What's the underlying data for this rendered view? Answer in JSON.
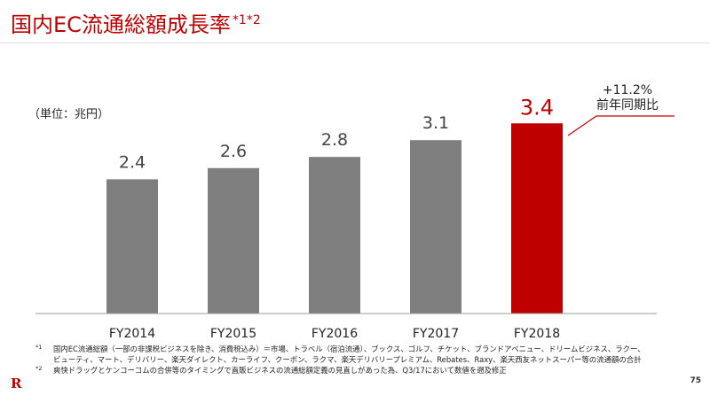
{
  "page": {
    "title": "国内EC流通総額成長率",
    "title_sup": "*1*2",
    "unit_label": "（単位：兆円）",
    "page_number": "75",
    "logo_letter": "R"
  },
  "callout": {
    "line1": "+11.2%",
    "line2": "前年同期比"
  },
  "colors": {
    "accent": "#bf0000",
    "bar_default": "#7f7f7f",
    "bar_highlight": "#bf0000"
  },
  "chart_data": {
    "type": "bar",
    "categories": [
      "FY2014",
      "FY2015",
      "FY2016",
      "FY2017",
      "FY2018"
    ],
    "values": [
      2.4,
      2.6,
      2.8,
      3.1,
      3.4
    ],
    "value_labels": [
      "2.4",
      "2.6",
      "2.8",
      "3.1",
      "3.4"
    ],
    "highlight_index": 4,
    "ylim": [
      0,
      3.8
    ],
    "grid": false,
    "title": "国内EC流通総額成長率",
    "xlabel": "",
    "ylabel": "（単位：兆円）"
  },
  "footnotes": [
    {
      "mark": "*1",
      "lines": [
        "国内EC流通総額（一部の非課税ビジネスを除き、消費税込み）＝市場、トラベル（宿泊流通）、ブックス、ゴルフ、チケット、ブランドアベニュー、ドリームビジネス、ラクー、",
        "ビューティ、マート、デリバリー、楽天ダイレクト、カーライフ、クーポン、ラクマ、楽天デリバリープレミアム、Rebates、Raxy、楽天西友ネットスーパー等の流通額の合計"
      ]
    },
    {
      "mark": "*2",
      "lines": [
        "爽快ドラッグとケンコーコムの合併等のタイミングで直販ビジネスの流通総額定義の見直しがあった為、Q3/17において数値を遡及修正"
      ]
    }
  ]
}
